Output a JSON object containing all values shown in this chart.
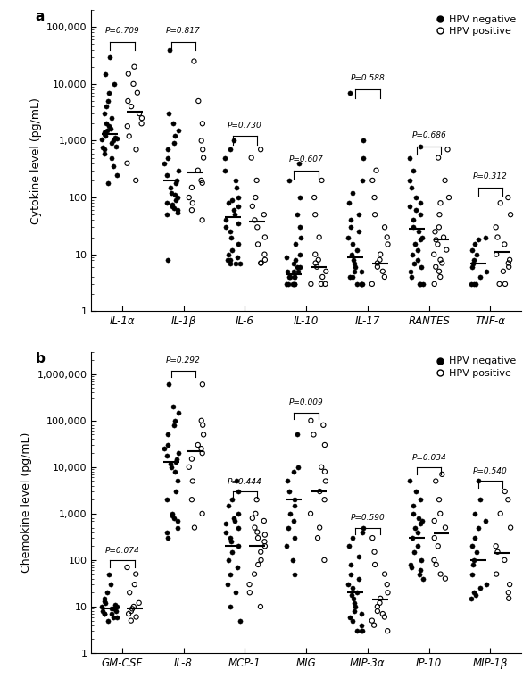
{
  "panel_a": {
    "title_label": "a",
    "ylabel": "Cytokine level (pg/mL)",
    "ylim_log": [
      1,
      200000
    ],
    "yticks": [
      1,
      10,
      100,
      1000,
      10000,
      100000
    ],
    "ytick_labels": [
      "1",
      "10",
      "100",
      "1,000",
      "10,000",
      "100,000"
    ],
    "categories": [
      "IL-1α",
      "IL-1β",
      "IL-6",
      "IL-10",
      "IL-17",
      "RANTES",
      "TNF-α"
    ],
    "pvalues": [
      "P=0.709",
      "P=0.817",
      "P=0.730",
      "P=0.607",
      "P=0.588",
      "P=0.686",
      "P=0.312"
    ],
    "bracket_y": [
      55000,
      55000,
      1200,
      300,
      8000,
      800,
      150
    ],
    "neg_data": {
      "IL-1a": [
        180,
        250,
        350,
        500,
        600,
        700,
        750,
        800,
        900,
        1000,
        1050,
        1100,
        1150,
        1200,
        1300,
        1400,
        1500,
        1600,
        1800,
        2000,
        2500,
        3000,
        4000,
        5000,
        7000,
        10000,
        15000,
        30000
      ],
      "IL-1b": [
        8,
        50,
        55,
        60,
        65,
        70,
        75,
        80,
        90,
        100,
        110,
        120,
        150,
        180,
        200,
        250,
        300,
        400,
        500,
        700,
        900,
        1200,
        1500,
        2000,
        3000,
        40000
      ],
      "IL-6": [
        7,
        7,
        7,
        8,
        8,
        9,
        10,
        12,
        15,
        20,
        25,
        30,
        35,
        40,
        50,
        60,
        70,
        80,
        90,
        100,
        150,
        200,
        300,
        500,
        700,
        1000
      ],
      "IL-10": [
        3,
        3,
        3,
        3,
        3,
        3,
        4,
        4,
        4,
        4,
        5,
        5,
        5,
        6,
        6,
        7,
        8,
        9,
        10,
        15,
        20,
        30,
        50,
        100,
        200,
        400
      ],
      "IL-17": [
        3,
        3,
        3,
        3,
        4,
        4,
        5,
        5,
        6,
        7,
        8,
        10,
        12,
        15,
        20,
        25,
        30,
        40,
        50,
        80,
        120,
        200,
        500,
        1000,
        7000
      ],
      "RANTES": [
        3,
        3,
        3,
        4,
        5,
        6,
        7,
        8,
        10,
        12,
        15,
        18,
        20,
        25,
        30,
        40,
        50,
        60,
        70,
        80,
        100,
        150,
        200,
        300,
        500,
        800
      ],
      "TNF-a": [
        3,
        3,
        3,
        4,
        5,
        6,
        7,
        8,
        10,
        12,
        15,
        18,
        20
      ]
    },
    "pos_data": {
      "IL-1a": [
        200,
        400,
        700,
        1200,
        1800,
        2000,
        2500,
        3000,
        4000,
        5000,
        7000,
        10000,
        15000,
        20000
      ],
      "IL-1b": [
        40,
        60,
        80,
        100,
        150,
        180,
        200,
        300,
        500,
        700,
        1000,
        2000,
        5000,
        25000
      ],
      "IL-6": [
        7,
        7,
        8,
        10,
        15,
        20,
        30,
        40,
        50,
        70,
        100,
        200,
        500,
        700
      ],
      "IL-10": [
        3,
        3,
        3,
        4,
        5,
        6,
        7,
        8,
        10,
        20,
        50,
        100,
        200
      ],
      "IL-17": [
        3,
        4,
        5,
        6,
        7,
        8,
        10,
        15,
        20,
        30,
        50,
        100,
        200,
        300
      ],
      "RANTES": [
        3,
        4,
        5,
        6,
        7,
        8,
        10,
        12,
        15,
        18,
        20,
        25,
        30,
        50,
        80,
        100,
        200,
        500,
        700
      ],
      "TNF-a": [
        3,
        3,
        5,
        6,
        7,
        8,
        10,
        15,
        20,
        30,
        50,
        80,
        100
      ]
    },
    "median_neg": {
      "IL-1a": 1300,
      "IL-1b": 200,
      "IL-6": 45,
      "IL-10": 4.5,
      "IL-17": 9,
      "RANTES": 28,
      "TNF-a": 7
    },
    "median_pos": {
      "IL-1a": 3200,
      "IL-1b": 275,
      "IL-6": 38,
      "IL-10": 6,
      "IL-17": 7,
      "RANTES": 18,
      "TNF-a": 11
    }
  },
  "panel_b": {
    "title_label": "b",
    "ylabel": "Chemokine level (pg/mL)",
    "ylim_log": [
      1,
      3000000
    ],
    "yticks": [
      1,
      10,
      100,
      1000,
      10000,
      100000,
      1000000
    ],
    "ytick_labels": [
      "1",
      "10",
      "100",
      "1,000",
      "10,000",
      "100,000",
      "1,000,000"
    ],
    "categories": [
      "GM-CSF",
      "IL-8",
      "MCP-1",
      "MIG",
      "MIP-3α",
      "IP-10",
      "MIP-1β"
    ],
    "pvalues": [
      "P=0.074",
      "P=0.292",
      "P=0.444",
      "P=0.009",
      "P=0.590",
      "P=0.034",
      "P=0.540"
    ],
    "bracket_y": [
      100,
      1200000,
      3000,
      150000,
      500,
      10000,
      5000
    ],
    "neg_data": {
      "GM-CSF": [
        5,
        6,
        6,
        7,
        7,
        7,
        8,
        8,
        9,
        9,
        10,
        10,
        11,
        12,
        13,
        15,
        20,
        30,
        50
      ],
      "IL-8": [
        300,
        400,
        500,
        700,
        800,
        900,
        1000,
        2000,
        3000,
        5000,
        8000,
        10000,
        12000,
        13000,
        15000,
        18000,
        20000,
        25000,
        30000,
        50000,
        80000,
        100000,
        150000,
        200000,
        600000
      ],
      "MCP-1": [
        5,
        10,
        20,
        30,
        50,
        70,
        100,
        150,
        200,
        250,
        300,
        400,
        500,
        600,
        700,
        800,
        1000,
        1500,
        2000,
        3000,
        5000
      ],
      "MIG": [
        50,
        100,
        200,
        300,
        500,
        700,
        1000,
        1500,
        2000,
        3000,
        5000,
        8000,
        10000,
        50000
      ],
      "MIP-3a": [
        3,
        3,
        3,
        4,
        5,
        6,
        7,
        8,
        10,
        12,
        15,
        18,
        20,
        25,
        30,
        40,
        50,
        80,
        120,
        200,
        300,
        400,
        500
      ],
      "IP-10": [
        40,
        50,
        60,
        70,
        80,
        100,
        150,
        200,
        300,
        400,
        500,
        600,
        700,
        800,
        1000,
        1500,
        2000,
        3000,
        5000
      ],
      "MIP-1b": [
        15,
        18,
        20,
        25,
        30,
        50,
        80,
        100,
        150,
        200,
        300,
        500,
        700,
        1000,
        2000,
        5000
      ]
    },
    "pos_data": {
      "GM-CSF": [
        5,
        6,
        7,
        8,
        9,
        10,
        12,
        20,
        30,
        50,
        70
      ],
      "IL-8": [
        500,
        1000,
        2000,
        5000,
        10000,
        15000,
        20000,
        25000,
        30000,
        50000,
        80000,
        100000,
        600000
      ],
      "MCP-1": [
        10,
        20,
        30,
        50,
        80,
        100,
        150,
        200,
        250,
        300,
        350,
        400,
        500,
        700,
        800,
        1000,
        2000
      ],
      "MIG": [
        100,
        300,
        500,
        1000,
        2000,
        3000,
        5000,
        8000,
        10000,
        30000,
        50000,
        80000,
        100000
      ],
      "MIP-3a": [
        3,
        4,
        5,
        6,
        7,
        8,
        10,
        12,
        15,
        20,
        30,
        50,
        80,
        150,
        300
      ],
      "IP-10": [
        40,
        50,
        80,
        100,
        200,
        300,
        500,
        700,
        1000,
        2000,
        5000,
        7000
      ],
      "MIP-1b": [
        15,
        20,
        30,
        50,
        100,
        150,
        200,
        500,
        1000,
        2000,
        3000
      ]
    },
    "median_neg": {
      "GM-CSF": 9,
      "IL-8": 13000,
      "MCP-1": 200,
      "MIG": 2000,
      "MIP-3a": 20,
      "IP-10": 300,
      "MIP-1b": 100
    },
    "median_pos": {
      "GM-CSF": 9,
      "IL-8": 22000,
      "MCP-1": 200,
      "MIG": 3000,
      "MIP-3a": 14,
      "IP-10": 380,
      "MIP-1b": 140
    }
  },
  "dot_size": 14,
  "neg_color": "#000000",
  "jitter_seed": 42
}
